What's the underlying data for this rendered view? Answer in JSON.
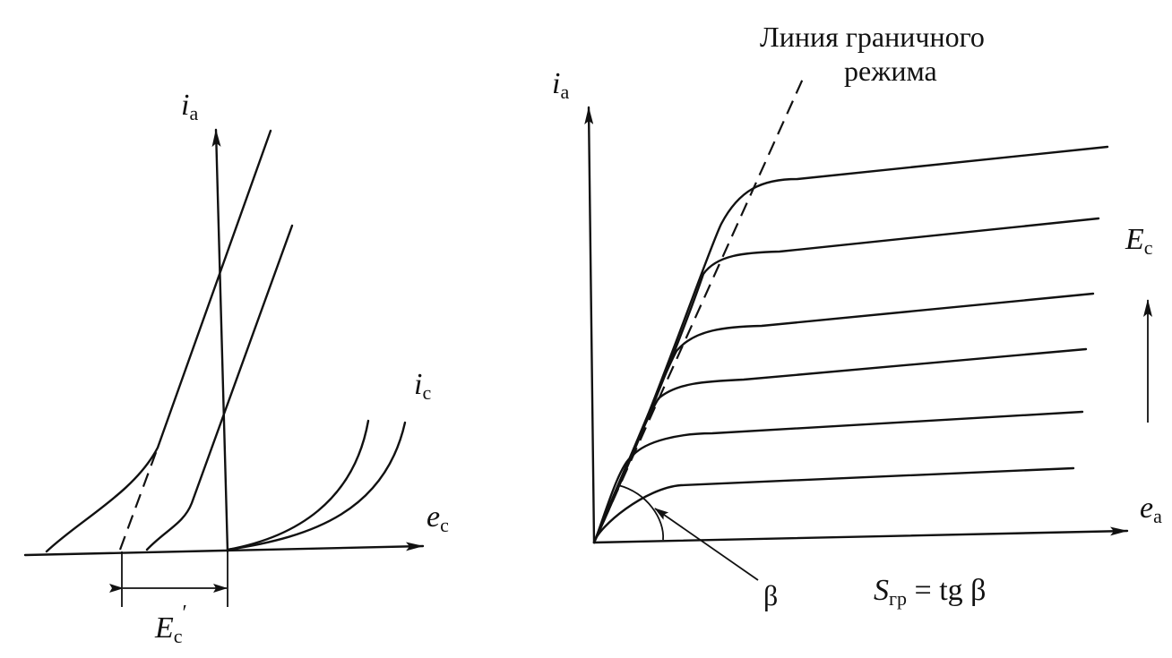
{
  "left_panel": {
    "y_axis_label": "i",
    "y_axis_sub": "a",
    "x_axis_label": "e",
    "x_axis_sub": "c",
    "grid_current_label": "i",
    "grid_current_sub": "c",
    "cutoff_label": "E",
    "cutoff_sub": "c",
    "cutoff_prime": "′"
  },
  "right_panel": {
    "y_axis_label": "i",
    "y_axis_sub": "a",
    "x_axis_label": "e",
    "x_axis_sub": "a",
    "family_param_label": "E",
    "family_param_sub": "c",
    "boundary_line_label_1": "Линия граничного",
    "boundary_line_label_2": "режима",
    "angle_label": "β",
    "slope_formula_lhs": "S",
    "slope_formula_sub": "гр",
    "slope_formula_rhs": " = tg β"
  }
}
